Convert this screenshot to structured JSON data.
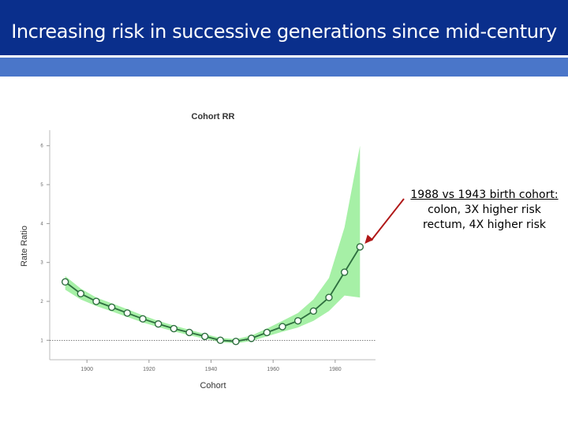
{
  "slide": {
    "title": "Increasing risk in successive generations since mid-century"
  },
  "callout": {
    "line1": "1988 vs 1943 birth cohort:",
    "line2": "colon, 3X higher risk",
    "line3": "rectum, 4X higher risk"
  },
  "colors": {
    "title_bar": "#0a2f8c",
    "accent_bar": "#4a76c9",
    "band_fill": "#a6f0a6",
    "line": "#2e6e3f",
    "arrow": "#b01818"
  },
  "chart_data": {
    "type": "line",
    "title": "Cohort RR",
    "xlabel": "Cohort",
    "ylabel": "Rate Ratio",
    "xlim": [
      1888,
      1993
    ],
    "ylim": [
      0.5,
      6.4
    ],
    "x_ticks": [
      1900,
      1920,
      1940,
      1960,
      1980
    ],
    "y_ticks": [
      1,
      2,
      3,
      4,
      5,
      6
    ],
    "reference_line": 1,
    "grid": false,
    "legend": "none",
    "series": [
      {
        "x": [
          1893,
          1898,
          1903,
          1908,
          1913,
          1918,
          1923,
          1928,
          1933,
          1938,
          1943,
          1948,
          1953,
          1958,
          1963,
          1968,
          1973,
          1978,
          1983,
          1988
        ],
        "values": [
          2.5,
          2.2,
          2.0,
          1.85,
          1.7,
          1.55,
          1.42,
          1.3,
          1.2,
          1.1,
          1.0,
          0.97,
          1.05,
          1.2,
          1.35,
          1.5,
          1.75,
          2.1,
          2.75,
          3.4
        ]
      }
    ],
    "confidence_band": {
      "x": [
        1893,
        1898,
        1903,
        1908,
        1913,
        1918,
        1923,
        1928,
        1933,
        1938,
        1943,
        1948,
        1953,
        1958,
        1963,
        1968,
        1973,
        1978,
        1983,
        1988
      ],
      "lower": [
        2.3,
        2.05,
        1.88,
        1.74,
        1.6,
        1.46,
        1.34,
        1.23,
        1.13,
        1.04,
        0.95,
        0.92,
        0.98,
        1.1,
        1.22,
        1.33,
        1.5,
        1.75,
        2.15,
        2.1
      ],
      "upper": [
        2.65,
        2.33,
        2.1,
        1.95,
        1.8,
        1.64,
        1.5,
        1.38,
        1.27,
        1.16,
        1.06,
        1.03,
        1.12,
        1.3,
        1.5,
        1.7,
        2.05,
        2.6,
        3.9,
        6.0
      ]
    }
  }
}
